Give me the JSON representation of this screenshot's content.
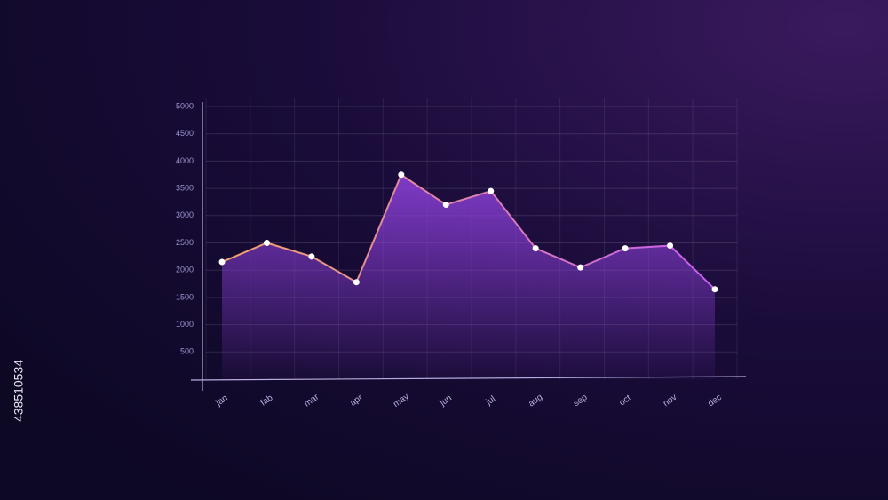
{
  "chart_data": {
    "type": "area",
    "categories": [
      "jan",
      "fab",
      "mar",
      "apr",
      "may",
      "jun",
      "jul",
      "aug",
      "sep",
      "oct",
      "nov",
      "dec"
    ],
    "values": [
      2150,
      2500,
      2250,
      1780,
      3750,
      3200,
      3450,
      2400,
      2050,
      2400,
      2450,
      1650
    ],
    "line_colors": [
      "#f4a46a",
      "#c45cf0"
    ],
    "fill_color": "#8a3fd6",
    "marker_color": "#ffffff",
    "ylim": [
      0,
      5000
    ],
    "yticks": [
      500,
      1000,
      1500,
      2000,
      2500,
      3000,
      3500,
      4000,
      4500,
      5000
    ],
    "grid": true
  },
  "watermark_id": "438510534"
}
